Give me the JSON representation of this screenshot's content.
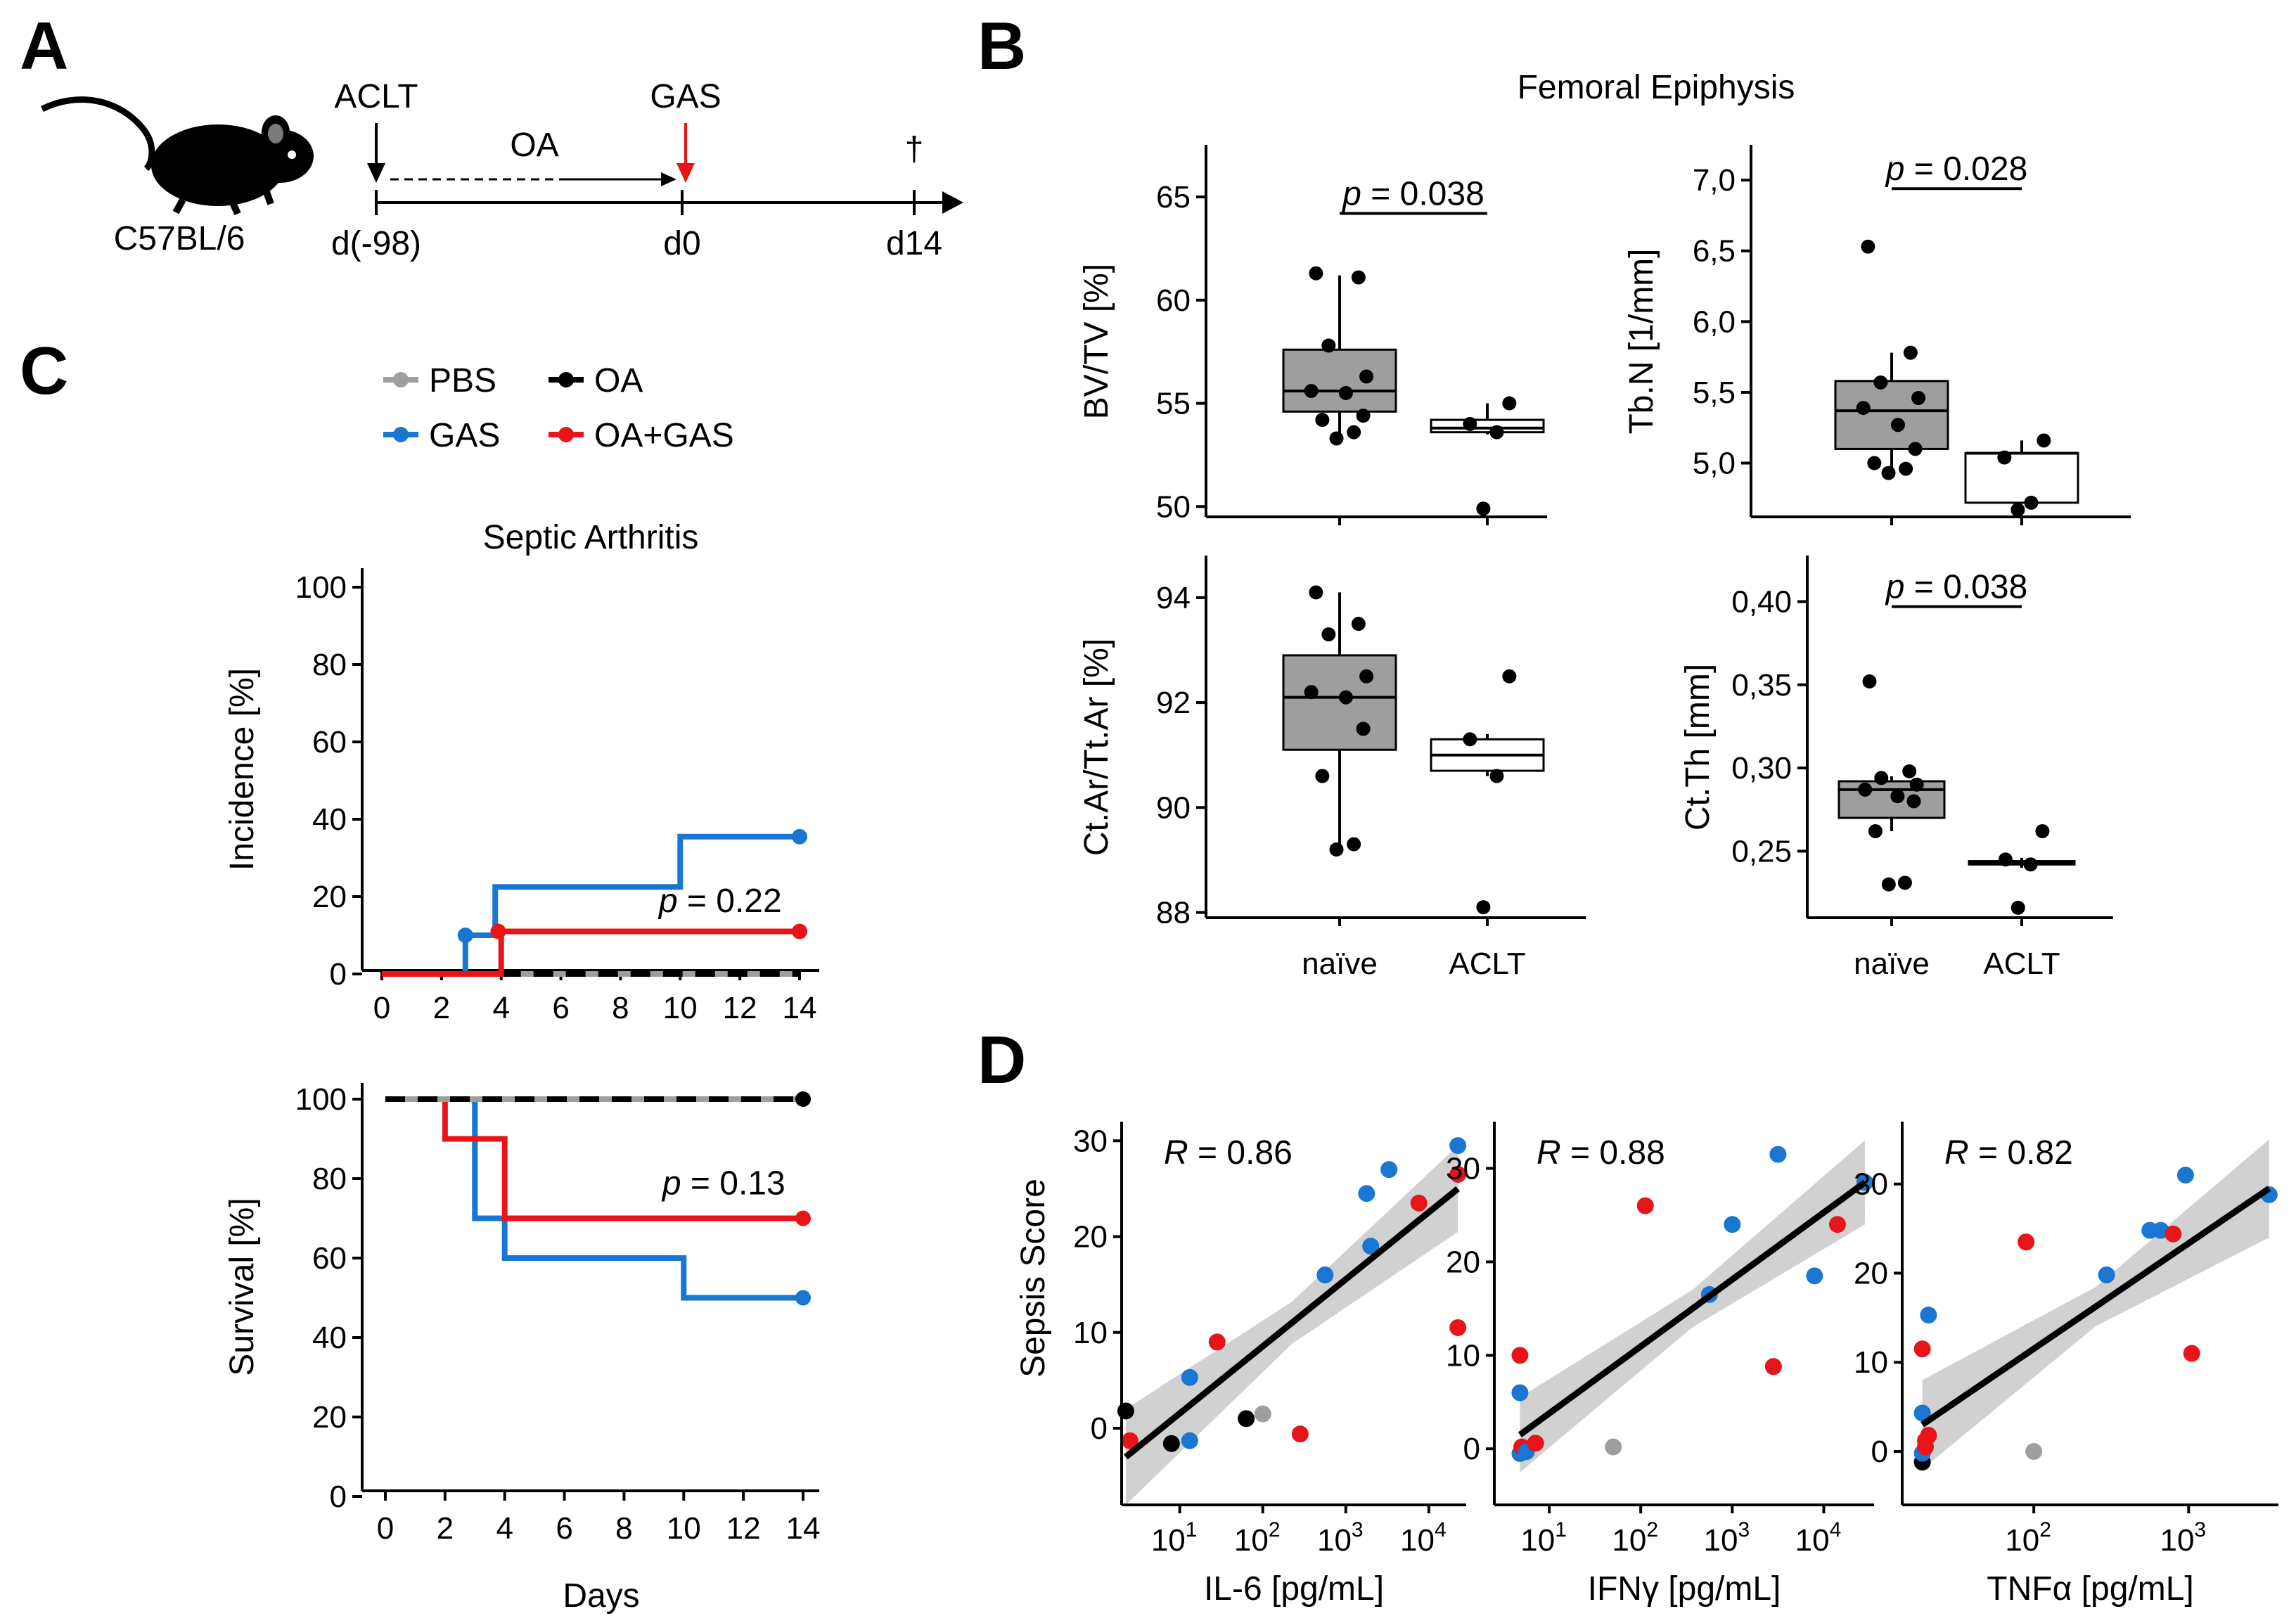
{
  "panels": {
    "a": {
      "letter": "A",
      "strain": "C57BL/6",
      "aclt": "ACLT",
      "oa": "OA",
      "gas": "GAS",
      "dagger": "†",
      "d_start": "d(-98)",
      "d_zero": "d0",
      "d_end": "d14",
      "colors": {
        "red": "#e8141a",
        "black": "#000000"
      }
    },
    "b": {
      "letter": "B"
    },
    "c": {
      "letter": "C"
    },
    "d": {
      "letter": "D"
    }
  },
  "chart_data": [
    {
      "type": "box",
      "id": "bvtv",
      "title": "Femoral Epiphysis",
      "ylabel": "BV/TV [%]",
      "ylim": [
        49.5,
        66.5
      ],
      "yticks": [
        50,
        55,
        60,
        65
      ],
      "ytick_labels": [
        "50",
        "55",
        "60",
        "65"
      ],
      "categories": [
        "naïve",
        "ACLT"
      ],
      "show_xlabels": false,
      "p_text": "p = 0.038",
      "p_y": 64.2,
      "groups": [
        {
          "name": "naïve",
          "fill": "#9e9e9e",
          "q1": 54.6,
          "median": 55.6,
          "q3": 57.6,
          "wlo": 53.3,
          "whi": 61.2,
          "points": [
            61.3,
            61.1,
            57.8,
            56.3,
            55.6,
            55.5,
            54.4,
            54.2,
            53.6,
            53.3
          ]
        },
        {
          "name": "ACLT",
          "fill": "#ffffff",
          "q1": 53.6,
          "median": 53.8,
          "q3": 54.2,
          "wlo": 53.5,
          "whi": 55.0,
          "points": [
            55.0,
            54.0,
            53.6,
            49.9
          ]
        }
      ]
    },
    {
      "type": "box",
      "id": "tbn",
      "ylabel": "Tb.N [1/mm]",
      "ylim": [
        4.62,
        7.1
      ],
      "yticks": [
        5.0,
        5.5,
        6.0,
        6.5,
        7.0
      ],
      "ytick_labels": [
        "5,0",
        "5,5",
        "6,0",
        "6,5",
        "7,0"
      ],
      "categories": [
        "naïve",
        "ACLT"
      ],
      "show_xlabels": false,
      "p_text": "p = 0.028",
      "p_y": 6.94,
      "groups": [
        {
          "name": "naïve",
          "fill": "#9e9e9e",
          "q1": 5.1,
          "median": 5.37,
          "q3": 5.58,
          "wlo": 4.95,
          "whi": 5.78,
          "points": [
            6.53,
            5.78,
            5.57,
            5.46,
            5.39,
            5.27,
            5.1,
            5.0,
            4.96,
            4.93
          ]
        },
        {
          "name": "ACLT",
          "fill": "#ffffff",
          "q1": 4.72,
          "median": 5.07,
          "q3": 5.07,
          "wlo": 4.72,
          "whi": 5.16,
          "points": [
            5.16,
            5.04,
            4.72,
            4.67
          ]
        }
      ]
    },
    {
      "type": "box",
      "id": "ctar",
      "ylabel": "Ct.Ar/Tt.Ar [%]",
      "ylim": [
        87.9,
        94.4
      ],
      "yticks": [
        88,
        90,
        92,
        94
      ],
      "ytick_labels": [
        "88",
        "90",
        "92",
        "94"
      ],
      "categories": [
        "naïve",
        "ACLT"
      ],
      "show_xlabels": true,
      "groups": [
        {
          "name": "naïve",
          "fill": "#9e9e9e",
          "q1": 91.1,
          "median": 92.1,
          "q3": 92.9,
          "wlo": 89.3,
          "whi": 94.1,
          "points": [
            94.1,
            93.5,
            93.3,
            92.5,
            92.2,
            92.1,
            91.5,
            90.6,
            89.3,
            89.2
          ]
        },
        {
          "name": "ACLT",
          "fill": "#ffffff",
          "q1": 90.7,
          "median": 91.0,
          "q3": 91.3,
          "wlo": 90.6,
          "whi": 91.4,
          "points": [
            92.5,
            91.3,
            90.6,
            88.1
          ]
        }
      ]
    },
    {
      "type": "box",
      "id": "ctth",
      "ylabel": "Ct.Th [mm]",
      "ylim": [
        0.21,
        0.415
      ],
      "yticks": [
        0.25,
        0.3,
        0.35,
        0.4
      ],
      "ytick_labels": [
        "0,25",
        "0,30",
        "0,35",
        "0,40"
      ],
      "categories": [
        "naïve",
        "ACLT"
      ],
      "show_xlabels": true,
      "p_text": "p = 0.038",
      "p_y": 0.397,
      "groups": [
        {
          "name": "naïve",
          "fill": "#9e9e9e",
          "q1": 0.27,
          "median": 0.287,
          "q3": 0.292,
          "wlo": 0.262,
          "whi": 0.295,
          "points": [
            0.352,
            0.298,
            0.294,
            0.29,
            0.287,
            0.283,
            0.28,
            0.262,
            0.231,
            0.23
          ]
        },
        {
          "name": "ACLT",
          "fill": "#ffffff",
          "q1": 0.242,
          "median": 0.243,
          "q3": 0.244,
          "wlo": 0.24,
          "whi": 0.246,
          "points": [
            0.262,
            0.245,
            0.242,
            0.216
          ]
        }
      ]
    },
    {
      "type": "line",
      "id": "incidence",
      "title": "Septic Arthritis",
      "ylabel": "Incidence [%]",
      "xlim": [
        0,
        14
      ],
      "ylim": [
        0,
        100
      ],
      "xticks": [
        0,
        2,
        4,
        6,
        8,
        10,
        12,
        14
      ],
      "yticks": [
        0,
        20,
        40,
        60,
        80,
        100
      ],
      "show_xlabel": false,
      "p_text": "p = 0.22",
      "p_xy": [
        9,
        16
      ],
      "legend": [
        {
          "name": "PBS",
          "color": "#9e9e9e"
        },
        {
          "name": "OA",
          "color": "#000000"
        },
        {
          "name": "GAS",
          "color": "#1976d2"
        },
        {
          "name": "OA+GAS",
          "color": "#e8141a"
        }
      ],
      "series": [
        {
          "name": "PBS",
          "color": "#9e9e9e",
          "dash": false,
          "points": [
            [
              4,
              0
            ],
            [
              14,
              0
            ]
          ],
          "end_dot": true
        },
        {
          "name": "OA",
          "color": "#000000",
          "dash": true,
          "points": [
            [
              4,
              0
            ],
            [
              14,
              0
            ]
          ],
          "end_dot": true
        },
        {
          "name": "GAS",
          "color": "#1976d2",
          "dash": false,
          "points": [
            [
              0,
              0
            ],
            [
              2.8,
              0
            ],
            [
              2.8,
              10
            ],
            [
              3.8,
              10
            ],
            [
              3.8,
              22.5
            ],
            [
              10,
              22.5
            ],
            [
              10,
              35.5
            ],
            [
              14,
              35.5
            ]
          ],
          "dots": [
            [
              2.8,
              10
            ],
            [
              14,
              35.5
            ]
          ]
        },
        {
          "name": "OA+GAS",
          "color": "#e8141a",
          "dash": false,
          "points": [
            [
              0,
              0
            ],
            [
              4,
              0
            ],
            [
              4,
              11
            ],
            [
              14,
              11
            ]
          ],
          "dots": [
            [
              3.9,
              11
            ],
            [
              14,
              11
            ]
          ]
        }
      ]
    },
    {
      "type": "line",
      "id": "survival",
      "ylabel": "Survival [%]",
      "xlabel": "Days",
      "xlim": [
        0,
        14
      ],
      "ylim": [
        0,
        100
      ],
      "xticks": [
        0,
        2,
        4,
        6,
        8,
        10,
        12,
        14
      ],
      "yticks": [
        0,
        20,
        40,
        60,
        80,
        100
      ],
      "show_xlabel": true,
      "p_text": "p = 0.13",
      "p_xy": [
        9,
        76
      ],
      "series": [
        {
          "name": "GAS",
          "color": "#1976d2",
          "dash": false,
          "points": [
            [
              0,
              100
            ],
            [
              3,
              100
            ],
            [
              3,
              70
            ],
            [
              4,
              70
            ],
            [
              4,
              60
            ],
            [
              10,
              60
            ],
            [
              10,
              50
            ],
            [
              14,
              50
            ]
          ],
          "dots": [
            [
              14,
              50
            ]
          ]
        },
        {
          "name": "OA+GAS",
          "color": "#e8141a",
          "dash": false,
          "points": [
            [
              0,
              100
            ],
            [
              2,
              100
            ],
            [
              2,
              90
            ],
            [
              4,
              90
            ],
            [
              4,
              70
            ],
            [
              14,
              70
            ]
          ],
          "dots": [
            [
              14,
              70
            ]
          ]
        },
        {
          "name": "PBS",
          "color": "#9e9e9e",
          "dash": false,
          "points": [
            [
              0,
              100
            ],
            [
              14,
              100
            ]
          ]
        },
        {
          "name": "OA",
          "color": "#000000",
          "dash": true,
          "points": [
            [
              0,
              100
            ],
            [
              14,
              100
            ]
          ],
          "dots": [
            [
              14,
              100
            ]
          ]
        }
      ]
    },
    {
      "type": "scatter",
      "id": "il6",
      "xscale": "log",
      "xlabel": "IL-6 [pg/mL]",
      "ylabel": "Sepsis Score",
      "xlim": [
        0.3,
        4.45
      ],
      "ylim": [
        -8,
        32
      ],
      "xticks": [
        1,
        2,
        3,
        4
      ],
      "yticks": [
        0,
        10,
        20,
        30
      ],
      "r_text": "R = 0.86",
      "fit": {
        "x": [
          0.35,
          4.35
        ],
        "y": [
          -3,
          25
        ],
        "ci_half": [
          5,
          2.2,
          4.5
        ]
      },
      "points": [
        {
          "x": 0.35,
          "y": 1.8,
          "c": "#000000"
        },
        {
          "x": 0.4,
          "y": -1.3,
          "c": "#e8141a"
        },
        {
          "x": 0.9,
          "y": -1.6,
          "c": "#000000"
        },
        {
          "x": 1.12,
          "y": -1.3,
          "c": "#1976d2"
        },
        {
          "x": 1.12,
          "y": 5.3,
          "c": "#1976d2"
        },
        {
          "x": 1.45,
          "y": 9.0,
          "c": "#e8141a"
        },
        {
          "x": 1.8,
          "y": 1.0,
          "c": "#000000"
        },
        {
          "x": 2.0,
          "y": 1.5,
          "c": "#9e9e9e"
        },
        {
          "x": 2.45,
          "y": -0.6,
          "c": "#e8141a"
        },
        {
          "x": 2.75,
          "y": 16.0,
          "c": "#1976d2"
        },
        {
          "x": 3.25,
          "y": 24.5,
          "c": "#1976d2"
        },
        {
          "x": 3.3,
          "y": 19.0,
          "c": "#1976d2"
        },
        {
          "x": 3.52,
          "y": 27.0,
          "c": "#1976d2"
        },
        {
          "x": 3.88,
          "y": 23.5,
          "c": "#e8141a"
        },
        {
          "x": 4.35,
          "y": 29.5,
          "c": "#1976d2"
        },
        {
          "x": 4.35,
          "y": 26.5,
          "c": "#e8141a"
        },
        {
          "x": 4.35,
          "y": 10.5,
          "c": "#e8141a"
        }
      ]
    },
    {
      "type": "scatter",
      "id": "ifng",
      "xscale": "log",
      "xlabel": "IFNγ [pg/mL]",
      "xlim": [
        0.4,
        4.55
      ],
      "ylim": [
        -6,
        35
      ],
      "xticks": [
        1,
        2,
        3,
        4
      ],
      "yticks": [
        0,
        10,
        20,
        30
      ],
      "r_text": "R = 0.88",
      "fit": {
        "x": [
          0.68,
          4.45
        ],
        "y": [
          1.5,
          28.5
        ],
        "ci_half": [
          4,
          2,
          4.5
        ]
      },
      "points": [
        {
          "x": 0.68,
          "y": -0.5,
          "c": "#1976d2"
        },
        {
          "x": 0.7,
          "y": 0.2,
          "c": "#e8141a"
        },
        {
          "x": 0.75,
          "y": -0.3,
          "c": "#1976d2"
        },
        {
          "x": 0.85,
          "y": 0.6,
          "c": "#e8141a"
        },
        {
          "x": 0.68,
          "y": 6.0,
          "c": "#1976d2"
        },
        {
          "x": 0.68,
          "y": 10.0,
          "c": "#e8141a"
        },
        {
          "x": 1.7,
          "y": 0.2,
          "c": "#9e9e9e"
        },
        {
          "x": 2.05,
          "y": 26.0,
          "c": "#e8141a"
        },
        {
          "x": 2.75,
          "y": 16.5,
          "c": "#1976d2"
        },
        {
          "x": 3.0,
          "y": 24.0,
          "c": "#1976d2"
        },
        {
          "x": 3.45,
          "y": 8.8,
          "c": "#e8141a"
        },
        {
          "x": 3.5,
          "y": 31.5,
          "c": "#1976d2"
        },
        {
          "x": 3.9,
          "y": 18.5,
          "c": "#1976d2"
        },
        {
          "x": 4.15,
          "y": 24.0,
          "c": "#e8141a"
        },
        {
          "x": 4.45,
          "y": 28.5,
          "c": "#1976d2"
        }
      ]
    },
    {
      "type": "scatter",
      "id": "tnfa",
      "xscale": "log",
      "xlabel": "TNFα [pg/mL]",
      "xlim": [
        1.15,
        3.58
      ],
      "ylim": [
        -6,
        37
      ],
      "xticks": [
        2,
        3
      ],
      "yticks": [
        0,
        10,
        20,
        30
      ],
      "r_text": "R = 0.82",
      "fit": {
        "x": [
          1.28,
          3.52
        ],
        "y": [
          3,
          29.5
        ],
        "ci_half": [
          5,
          2.2,
          5.5
        ]
      },
      "points": [
        {
          "x": 1.28,
          "y": -1.2,
          "c": "#000000"
        },
        {
          "x": 1.28,
          "y": -0.2,
          "c": "#1976d2"
        },
        {
          "x": 1.3,
          "y": 0.5,
          "c": "#e8141a"
        },
        {
          "x": 1.3,
          "y": 1.2,
          "c": "#e8141a"
        },
        {
          "x": 1.32,
          "y": 1.8,
          "c": "#e8141a"
        },
        {
          "x": 1.28,
          "y": 4.3,
          "c": "#1976d2"
        },
        {
          "x": 1.28,
          "y": 11.5,
          "c": "#e8141a"
        },
        {
          "x": 1.32,
          "y": 15.3,
          "c": "#1976d2"
        },
        {
          "x": 1.95,
          "y": 23.5,
          "c": "#e8141a"
        },
        {
          "x": 2.0,
          "y": 0.0,
          "c": "#9e9e9e"
        },
        {
          "x": 2.47,
          "y": 19.8,
          "c": "#1976d2"
        },
        {
          "x": 2.75,
          "y": 24.8,
          "c": "#1976d2"
        },
        {
          "x": 2.82,
          "y": 24.8,
          "c": "#1976d2"
        },
        {
          "x": 2.9,
          "y": 24.4,
          "c": "#e8141a"
        },
        {
          "x": 2.98,
          "y": 31.0,
          "c": "#1976d2"
        },
        {
          "x": 3.02,
          "y": 11.0,
          "c": "#e8141a"
        },
        {
          "x": 3.52,
          "y": 28.8,
          "c": "#1976d2"
        }
      ]
    }
  ]
}
